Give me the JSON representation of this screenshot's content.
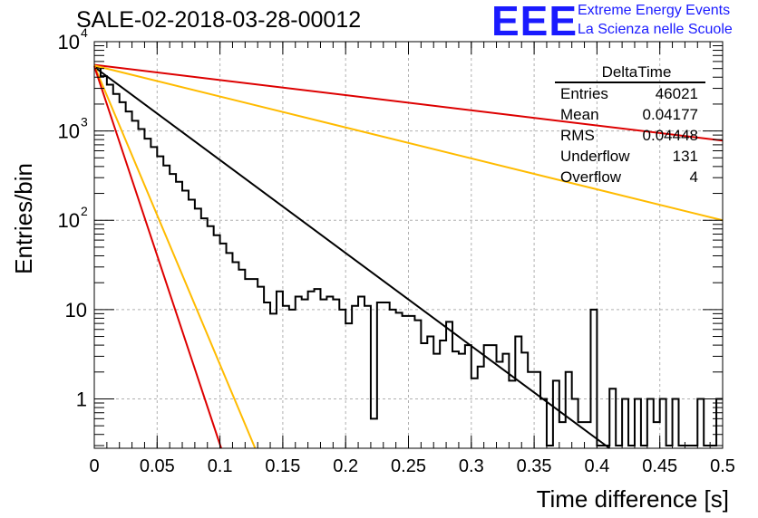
{
  "title": "SALE-02-2018-03-28-00012",
  "logo": {
    "mark": "EEE",
    "line1": "Extreme Energy Events",
    "line2": "La Scienza nelle Scuole"
  },
  "stats": {
    "title": "DeltaTime",
    "rows": [
      {
        "label": "Entries",
        "value": "46021"
      },
      {
        "label": "Mean",
        "value": "0.04177"
      },
      {
        "label": "RMS",
        "value": "0.04448"
      },
      {
        "label": "Underflow",
        "value": "131"
      },
      {
        "label": "Overflow",
        "value": "4"
      }
    ]
  },
  "chart_data": {
    "type": "histogram",
    "xlabel": "Time difference [s]",
    "ylabel": "Entries/bin",
    "xlim": [
      0,
      0.5
    ],
    "ylim": [
      0.28,
      10000
    ],
    "yscale": "log",
    "grid": true,
    "x_ticks": [
      "0",
      "0.05",
      "0.1",
      "0.15",
      "0.2",
      "0.25",
      "0.3",
      "0.35",
      "0.4",
      "0.45",
      "0.5"
    ],
    "y_ticks": [
      {
        "value": 1,
        "label": "1"
      },
      {
        "value": 10,
        "label": "10"
      },
      {
        "value": 100,
        "label": "10",
        "exp": "2"
      },
      {
        "value": 1000,
        "label": "10",
        "exp": "3"
      },
      {
        "value": 10000,
        "label": "10",
        "exp": "4"
      }
    ],
    "histogram": {
      "color": "#000000",
      "bin_width": 0.005,
      "values": [
        5200,
        4100,
        3300,
        2600,
        2100,
        1650,
        1300,
        1050,
        820,
        660,
        520,
        410,
        330,
        270,
        215,
        170,
        135,
        105,
        86,
        68,
        55,
        43,
        34,
        28,
        22,
        22,
        18,
        12,
        9,
        16,
        11,
        10,
        14,
        13,
        16,
        17,
        13,
        14,
        13,
        10,
        7,
        11,
        14,
        11,
        0.6,
        12,
        12,
        10,
        9.2,
        8.5,
        8.5,
        7.6,
        4.2,
        5.0,
        3.2,
        4.5,
        7.3,
        3.4,
        3.2,
        4.0,
        1.7,
        2.3,
        4.0,
        4.0,
        2.6,
        3.2,
        1.6,
        5.0,
        3.3,
        2.0,
        2.0,
        1.0,
        0.3,
        1.6,
        0.55,
        2.0,
        1.0,
        0.55,
        0.55,
        10.0,
        0.3,
        0.3,
        1.3,
        0.3,
        1.0,
        0.3,
        1.0,
        0.3,
        1.0,
        0.55,
        1.0,
        0.3,
        1.0,
        0.3,
        0.3,
        0.3,
        1.0,
        0.3,
        0.3,
        1.0
      ]
    },
    "series": [
      {
        "color": "#000000",
        "x": [
          0,
          0.41
        ],
        "y": [
          5200,
          0.28
        ]
      },
      {
        "color": "#dd0000",
        "x": [
          0,
          0.5
        ],
        "y": [
          5500,
          780
        ]
      },
      {
        "color": "#ffbb00",
        "x": [
          0,
          0.5
        ],
        "y": [
          5400,
          100
        ]
      },
      {
        "color": "#ffbb00",
        "x": [
          0,
          0.128
        ],
        "y": [
          5400,
          0.28
        ]
      },
      {
        "color": "#dd0000",
        "x": [
          0,
          0.101
        ],
        "y": [
          5300,
          0.28
        ]
      }
    ]
  }
}
